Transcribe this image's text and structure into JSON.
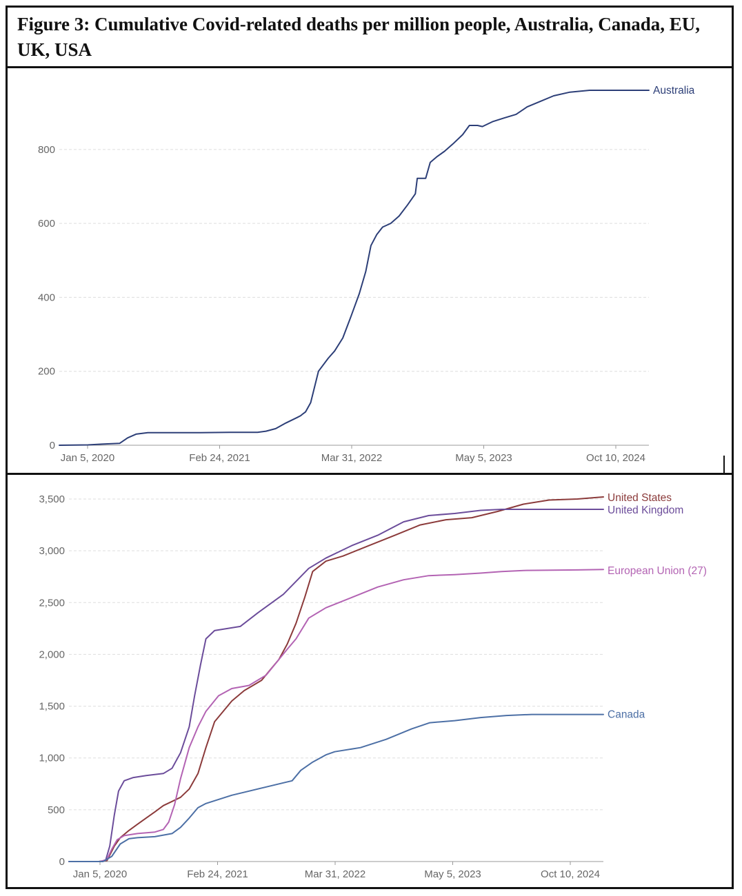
{
  "figure": {
    "title": "Figure 3: Cumulative Covid-related deaths per million people, Australia, Canada, EU, UK, USA"
  },
  "chart_data": [
    {
      "type": "line",
      "xlabel": "",
      "ylabel": "",
      "x_ticks": [
        "Jan 5, 2020",
        "Feb 24, 2021",
        "Mar 31, 2022",
        "May 5, 2023",
        "Oct 10, 2024"
      ],
      "y_ticks": [
        0,
        200,
        400,
        600,
        800
      ],
      "xlim": [
        "2019-12-22",
        "2024-12-15"
      ],
      "ylim": [
        0,
        960
      ],
      "grid": true,
      "series": [
        {
          "name": "Australia",
          "color": "#2c3e77",
          "x": [
            "2019-12-22",
            "2020-03-20",
            "2020-05-01",
            "2020-06-25",
            "2020-07-20",
            "2020-08-15",
            "2020-09-20",
            "2020-12-01",
            "2021-03-01",
            "2021-06-01",
            "2021-07-25",
            "2021-08-25",
            "2021-09-20",
            "2021-10-20",
            "2021-11-20",
            "2021-12-25",
            "2022-01-05",
            "2022-01-12",
            "2022-01-20",
            "2022-02-05",
            "2022-03-01",
            "2022-03-31",
            "2022-04-20",
            "2022-05-15",
            "2022-06-10",
            "2022-07-05",
            "2022-07-25",
            "2022-08-10",
            "2022-08-28",
            "2022-09-15",
            "2022-10-10",
            "2022-11-05",
            "2022-12-01",
            "2022-12-25",
            "2022-12-31",
            "2023-01-26",
            "2023-02-09",
            "2023-03-01",
            "2023-03-25",
            "2023-04-20",
            "2023-05-20",
            "2023-06-10",
            "2023-07-05",
            "2023-07-20",
            "2023-08-20",
            "2023-09-25",
            "2023-11-01",
            "2023-12-05",
            "2024-01-15",
            "2024-02-25",
            "2024-04-15",
            "2024-06-15",
            "2024-10-10",
            "2024-12-15"
          ],
          "y": [
            0,
            1,
            3,
            5,
            20,
            30,
            34,
            34,
            34,
            35,
            35,
            35,
            38,
            45,
            60,
            75,
            80,
            85,
            90,
            115,
            200,
            235,
            255,
            290,
            350,
            410,
            470,
            540,
            570,
            590,
            600,
            620,
            650,
            680,
            722,
            722,
            765,
            780,
            795,
            815,
            840,
            865,
            865,
            862,
            875,
            885,
            895,
            915,
            930,
            945,
            955,
            960,
            960,
            960
          ]
        }
      ]
    },
    {
      "type": "line",
      "xlabel": "",
      "ylabel": "",
      "x_ticks": [
        "Jan 5, 2020",
        "Feb 24, 2021",
        "Mar 31, 2022",
        "May 5, 2023",
        "Oct 10, 2024"
      ],
      "y_ticks": [
        "0",
        "500",
        "1,000",
        "1,500",
        "2,000",
        "2,500",
        "3,000",
        "3,500"
      ],
      "xlim": [
        "2019-11-01",
        "2025-01-10"
      ],
      "ylim": [
        0,
        3500
      ],
      "grid": true,
      "series": [
        {
          "name": "United States",
          "color": "#8b3a3a",
          "x": [
            "2019-11-01",
            "2020-02-15",
            "2020-03-15",
            "2020-04-10",
            "2020-05-01",
            "2020-06-01",
            "2020-07-01",
            "2020-08-01",
            "2020-09-01",
            "2020-10-01",
            "2020-11-01",
            "2020-12-01",
            "2021-01-01",
            "2021-02-01",
            "2021-03-01",
            "2021-04-01",
            "2021-06-01",
            "2021-07-15",
            "2021-08-15",
            "2021-09-15",
            "2021-10-15",
            "2021-11-15",
            "2021-12-15",
            "2022-01-15",
            "2022-02-15",
            "2022-03-15",
            "2022-05-01",
            "2022-07-01",
            "2022-10-01",
            "2023-01-01",
            "2023-04-01",
            "2023-07-01",
            "2023-10-01",
            "2024-01-01",
            "2024-04-01",
            "2024-07-01",
            "2024-10-10",
            "2025-01-10"
          ],
          "y": [
            0,
            0,
            10,
            150,
            230,
            300,
            360,
            420,
            480,
            540,
            580,
            620,
            700,
            850,
            1100,
            1350,
            1550,
            1650,
            1700,
            1750,
            1850,
            1950,
            2100,
            2300,
            2550,
            2800,
            2900,
            2950,
            3050,
            3150,
            3250,
            3300,
            3320,
            3380,
            3450,
            3490,
            3500,
            3520
          ]
        },
        {
          "name": "United Kingdom",
          "color": "#6b4c9a",
          "x": [
            "2019-11-01",
            "2020-02-15",
            "2020-03-10",
            "2020-03-25",
            "2020-04-10",
            "2020-04-25",
            "2020-05-15",
            "2020-06-15",
            "2020-08-01",
            "2020-10-01",
            "2020-11-01",
            "2020-12-01",
            "2021-01-01",
            "2021-01-20",
            "2021-02-10",
            "2021-03-01",
            "2021-04-01",
            "2021-07-01",
            "2021-09-01",
            "2021-12-01",
            "2022-03-01",
            "2022-05-01",
            "2022-08-01",
            "2022-11-01",
            "2023-02-01",
            "2023-05-01",
            "2023-08-01",
            "2023-11-01",
            "2024-01-15",
            "2024-04-01",
            "2024-10-10",
            "2025-01-10"
          ],
          "y": [
            0,
            0,
            10,
            150,
            450,
            680,
            780,
            810,
            830,
            850,
            900,
            1050,
            1300,
            1600,
            1900,
            2150,
            2230,
            2270,
            2400,
            2580,
            2830,
            2930,
            3050,
            3150,
            3280,
            3340,
            3360,
            3390,
            3400,
            3400,
            3400,
            3400
          ]
        },
        {
          "name": "European Union (27)",
          "color": "#b363b3",
          "x": [
            "2019-11-01",
            "2020-02-20",
            "2020-03-15",
            "2020-04-01",
            "2020-04-20",
            "2020-05-15",
            "2020-07-01",
            "2020-09-01",
            "2020-10-01",
            "2020-10-20",
            "2020-11-10",
            "2020-12-01",
            "2021-01-01",
            "2021-02-01",
            "2021-03-01",
            "2021-04-15",
            "2021-06-01",
            "2021-08-01",
            "2021-10-01",
            "2021-11-15",
            "2021-12-15",
            "2022-01-15",
            "2022-03-01",
            "2022-05-01",
            "2022-08-01",
            "2022-11-01",
            "2023-02-01",
            "2023-05-01",
            "2023-08-01",
            "2023-11-01",
            "2024-01-15",
            "2024-04-01",
            "2024-10-10",
            "2025-01-10"
          ],
          "y": [
            0,
            0,
            20,
            120,
            210,
            250,
            270,
            285,
            310,
            380,
            550,
            800,
            1100,
            1300,
            1450,
            1600,
            1670,
            1700,
            1800,
            1950,
            2050,
            2150,
            2350,
            2450,
            2550,
            2650,
            2720,
            2760,
            2770,
            2785,
            2800,
            2810,
            2815,
            2820
          ]
        },
        {
          "name": "Canada",
          "color": "#4c6fa5",
          "x": [
            "2019-11-01",
            "2020-03-01",
            "2020-04-01",
            "2020-05-01",
            "2020-06-01",
            "2020-07-01",
            "2020-09-01",
            "2020-11-01",
            "2020-12-01",
            "2021-01-01",
            "2021-02-01",
            "2021-03-01",
            "2021-06-01",
            "2021-08-01",
            "2021-10-01",
            "2021-12-01",
            "2022-01-01",
            "2022-02-01",
            "2022-03-15",
            "2022-05-01",
            "2022-06-01",
            "2022-09-01",
            "2022-12-01",
            "2023-03-01",
            "2023-05-05",
            "2023-08-01",
            "2023-11-01",
            "2024-02-01",
            "2024-05-01",
            "2024-10-10",
            "2025-01-10"
          ],
          "y": [
            0,
            0,
            50,
            170,
            220,
            230,
            240,
            270,
            330,
            420,
            520,
            560,
            640,
            680,
            720,
            760,
            780,
            880,
            960,
            1030,
            1060,
            1100,
            1180,
            1280,
            1340,
            1360,
            1390,
            1410,
            1420,
            1420,
            1420
          ]
        }
      ]
    }
  ]
}
